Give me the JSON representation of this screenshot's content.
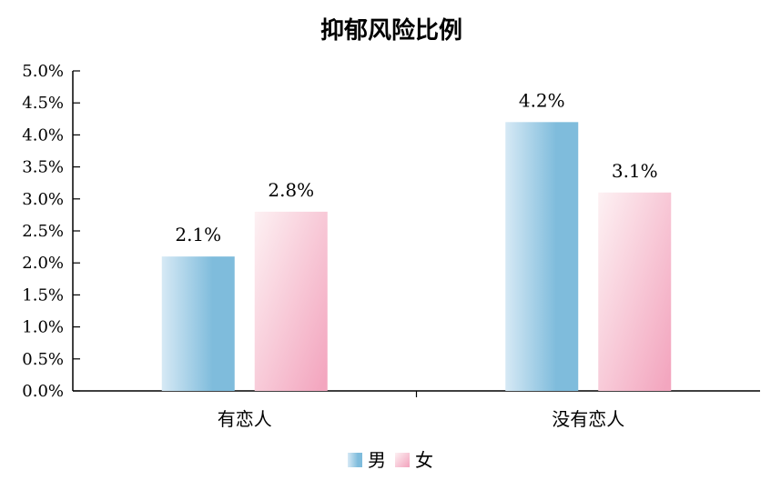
{
  "chart_data": {
    "type": "bar",
    "title": "抑郁风险比例",
    "categories": [
      "有恋人",
      "没有恋人"
    ],
    "series": [
      {
        "name": "男",
        "values": [
          2.1,
          4.2
        ],
        "labels": [
          "2.1%",
          "4.2%"
        ],
        "color_light": "#d6e9f5",
        "color_dark": "#7fbcdc"
      },
      {
        "name": "女",
        "values": [
          2.8,
          3.1
        ],
        "labels": [
          "2.8%",
          "3.1%"
        ],
        "color_light": "#fdf1f3",
        "color_dark": "#f3a6bf"
      }
    ],
    "ylim": [
      0,
      5
    ],
    "yticks": [
      "0.0%",
      "0.5%",
      "1.0%",
      "1.5%",
      "2.0%",
      "2.5%",
      "3.0%",
      "3.5%",
      "4.0%",
      "4.5%",
      "5.0%"
    ],
    "xlabel": "",
    "ylabel": "",
    "grid": false,
    "legend": "bottom"
  }
}
